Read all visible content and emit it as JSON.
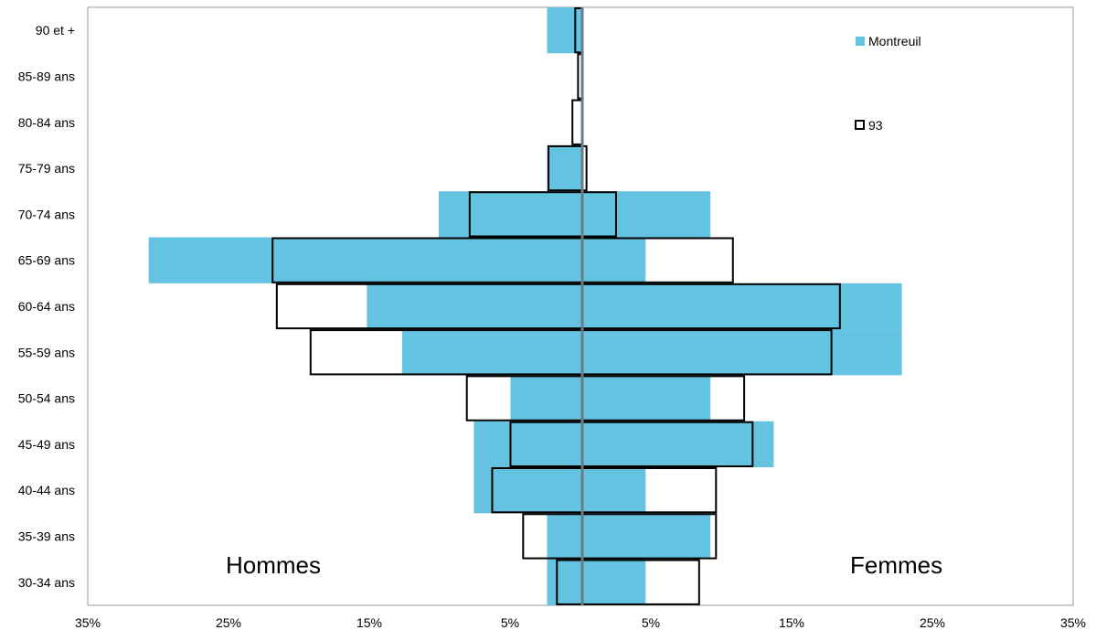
{
  "chart_data": {
    "type": "bar",
    "orientation": "horizontal",
    "layout": "population-pyramid",
    "categories": [
      "90 et +",
      "85-89 ans",
      "80-84 ans",
      "75-79 ans",
      "70-74 ans",
      "65-69 ans",
      "60-64 ans",
      "55-59 ans",
      "50-54 ans",
      "45-49 ans",
      "40-44 ans",
      "35-39 ans",
      "30-34 ans"
    ],
    "series": [
      {
        "name": "Montreuil",
        "style": "filled",
        "color": "#63c3e0",
        "hommes": [
          2.5,
          0,
          0,
          2.5,
          10.2,
          30.8,
          15.3,
          12.8,
          5.1,
          7.7,
          7.7,
          2.5,
          2.5
        ],
        "femmes": [
          0,
          0,
          0,
          0,
          9.1,
          4.5,
          22.7,
          22.7,
          9.1,
          13.6,
          4.5,
          9.1,
          4.5
        ]
      },
      {
        "name": "93",
        "style": "outline",
        "color": "#000000",
        "hommes": [
          0.5,
          0.3,
          0.7,
          2.4,
          8.0,
          22.0,
          21.7,
          19.3,
          8.2,
          5.1,
          6.4,
          4.2,
          1.8
        ],
        "femmes": [
          0,
          0,
          0,
          0.3,
          2.4,
          10.7,
          18.3,
          17.7,
          11.5,
          12.1,
          9.5,
          9.5,
          8.3
        ]
      }
    ],
    "x_ticks": [
      "35%",
      "25%",
      "15%",
      "5%",
      "5%",
      "15%",
      "25%",
      "35%"
    ],
    "xlim": [
      -35,
      35
    ],
    "side_labels": {
      "left": "Hommes",
      "right": "Femmes"
    },
    "legend": {
      "position": "top-right",
      "entries": [
        "Montreuil",
        "93"
      ]
    },
    "grid": false,
    "colors": {
      "fill": "#63c3e0",
      "outline": "#000000",
      "center_line": "#6e7b85"
    }
  }
}
